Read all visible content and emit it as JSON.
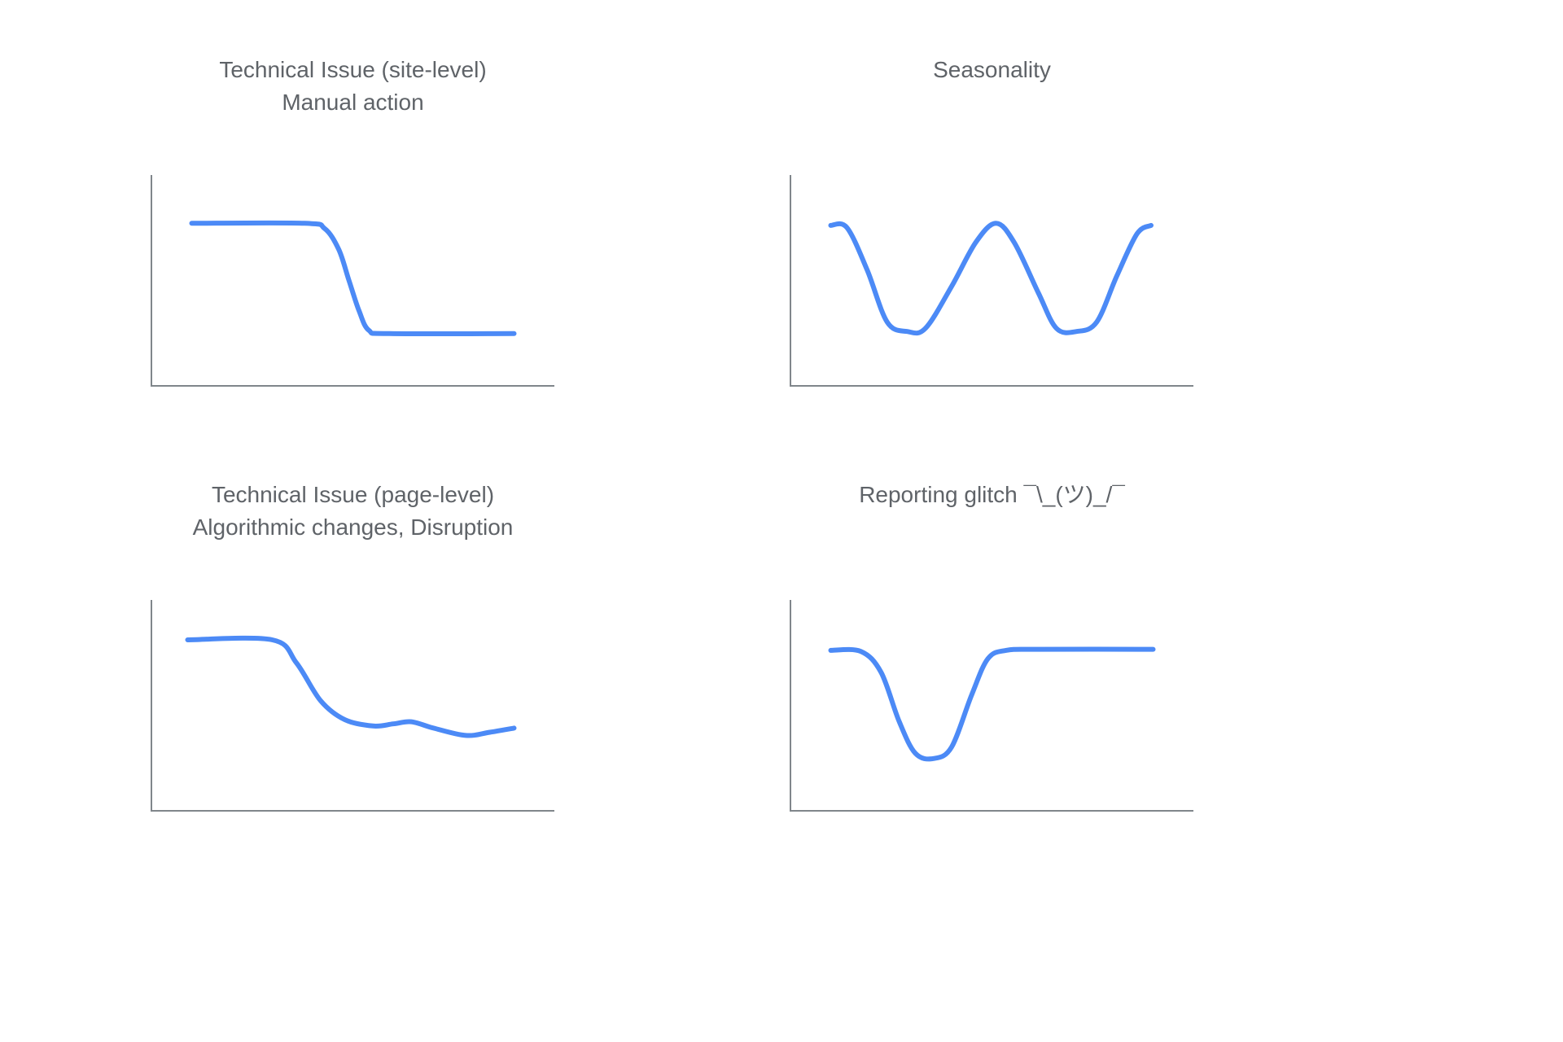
{
  "style": {
    "line_color": "#4c8af6",
    "axis_color": "#80868b",
    "title_color": "#5f6368",
    "background": "#ffffff"
  },
  "chart_data": [
    {
      "type": "line",
      "title_lines": [
        "Technical Issue (site-level)",
        "Manual action"
      ],
      "xlabel": "",
      "ylabel": "",
      "x_range": [
        0,
        1
      ],
      "y_range": [
        0,
        1
      ],
      "grid": false,
      "legend": "none",
      "points": [
        [
          0.1,
          0.77
        ],
        [
          0.38,
          0.77
        ],
        [
          0.43,
          0.745
        ],
        [
          0.465,
          0.645
        ],
        [
          0.49,
          0.5
        ],
        [
          0.515,
          0.355
        ],
        [
          0.54,
          0.26
        ],
        [
          0.59,
          0.245
        ],
        [
          0.9,
          0.245
        ]
      ]
    },
    {
      "type": "line",
      "title_lines": [
        "Seasonality"
      ],
      "xlabel": "",
      "ylabel": "",
      "x_range": [
        0,
        1
      ],
      "y_range": [
        0,
        1
      ],
      "grid": false,
      "legend": "none",
      "points": [
        [
          0.1,
          0.76
        ],
        [
          0.14,
          0.75
        ],
        [
          0.19,
          0.55
        ],
        [
          0.24,
          0.3
        ],
        [
          0.29,
          0.255
        ],
        [
          0.335,
          0.27
        ],
        [
          0.4,
          0.47
        ],
        [
          0.46,
          0.68
        ],
        [
          0.51,
          0.77
        ],
        [
          0.555,
          0.68
        ],
        [
          0.615,
          0.44
        ],
        [
          0.66,
          0.27
        ],
        [
          0.71,
          0.255
        ],
        [
          0.76,
          0.3
        ],
        [
          0.81,
          0.52
        ],
        [
          0.86,
          0.72
        ],
        [
          0.895,
          0.76
        ]
      ]
    },
    {
      "type": "line",
      "title_lines": [
        "Technical Issue (page-level)",
        "Algorithmic changes, Disruption"
      ],
      "xlabel": "",
      "ylabel": "",
      "x_range": [
        0,
        1
      ],
      "y_range": [
        0,
        1
      ],
      "grid": false,
      "legend": "none",
      "points": [
        [
          0.09,
          0.81
        ],
        [
          0.3,
          0.81
        ],
        [
          0.36,
          0.7
        ],
        [
          0.42,
          0.52
        ],
        [
          0.48,
          0.43
        ],
        [
          0.55,
          0.4
        ],
        [
          0.6,
          0.41
        ],
        [
          0.645,
          0.42
        ],
        [
          0.7,
          0.39
        ],
        [
          0.78,
          0.355
        ],
        [
          0.84,
          0.37
        ],
        [
          0.9,
          0.39
        ]
      ]
    },
    {
      "type": "line",
      "title_lines": [
        "Reporting glitch ¯\\_(ツ)_/¯"
      ],
      "xlabel": "",
      "ylabel": "",
      "x_range": [
        0,
        1
      ],
      "y_range": [
        0,
        1
      ],
      "grid": false,
      "legend": "none",
      "points": [
        [
          0.1,
          0.76
        ],
        [
          0.175,
          0.755
        ],
        [
          0.225,
          0.655
        ],
        [
          0.27,
          0.42
        ],
        [
          0.31,
          0.27
        ],
        [
          0.355,
          0.245
        ],
        [
          0.4,
          0.3
        ],
        [
          0.45,
          0.55
        ],
        [
          0.49,
          0.72
        ],
        [
          0.535,
          0.76
        ],
        [
          0.62,
          0.765
        ],
        [
          0.9,
          0.765
        ]
      ]
    }
  ]
}
